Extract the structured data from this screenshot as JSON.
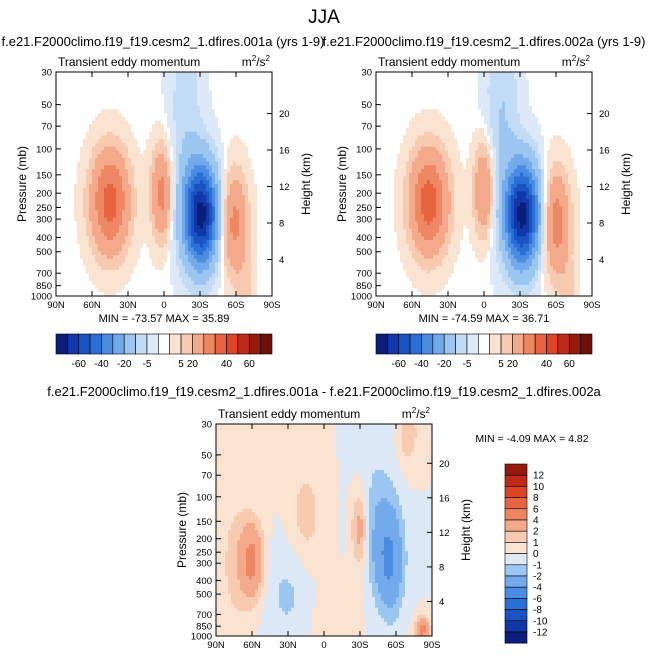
{
  "figure": {
    "title": "JJA"
  },
  "chart_data": [
    {
      "type": "heatmap",
      "case_label": "f.e21.F2000climo.f19_f19.cesm2_1.dfires.001a (yrs 1-9)",
      "title": "Transient eddy momentum",
      "units": "m²/s²",
      "units_base": "m",
      "units_sup": "2",
      "units_mid": "/s",
      "units_sup2": "2",
      "xlabel": "",
      "ylabel": "Pressure (mb)",
      "ylabel_right": "Height (km)",
      "x_ticks": [
        "90N",
        "60N",
        "30N",
        "0",
        "30S",
        "60S",
        "90S"
      ],
      "x_values": [
        90,
        60,
        30,
        0,
        -30,
        -60,
        -90
      ],
      "pressure_ticks": [
        "30",
        "50",
        "70",
        "100",
        "150",
        "200",
        "250",
        "300",
        "400",
        "500",
        "700",
        "850",
        "1000"
      ],
      "pressure_values": [
        30,
        50,
        70,
        100,
        150,
        200,
        250,
        300,
        400,
        500,
        700,
        850,
        1000
      ],
      "height_ticks": [
        "20",
        "16",
        "12",
        "8",
        "4"
      ],
      "height_values": [
        20,
        16,
        12,
        8,
        4
      ],
      "stats_text": "MIN = -73.57  MAX = 35.89",
      "min": -73.57,
      "max": 35.89,
      "features": [
        {
          "lat": 45,
          "p": 230,
          "value": 35,
          "wlat": 11,
          "wp": 0.55
        },
        {
          "lat": 2,
          "p": 200,
          "value": 24,
          "wlat": 6,
          "wp": 0.5
        },
        {
          "lat": -31,
          "p": 280,
          "value": -73,
          "wlat": 10,
          "wp": 0.55
        },
        {
          "lat": -58,
          "p": 320,
          "value": 24,
          "wlat": 8,
          "wp": 0.55
        },
        {
          "lat": -18,
          "p": 60,
          "value": -8,
          "wlat": 10,
          "wp": 1.4
        },
        {
          "lat": -68,
          "p": 880,
          "value": 6,
          "wlat": 5,
          "wp": 0.3
        }
      ]
    },
    {
      "type": "heatmap",
      "case_label": "f.e21.F2000climo.f19_f19.cesm2_1.dfires.002a (yrs 1-9)",
      "title": "Transient eddy momentum",
      "units": "m²/s²",
      "units_base": "m",
      "units_sup": "2",
      "units_mid": "/s",
      "units_sup2": "2",
      "xlabel": "",
      "ylabel": "Pressure (mb)",
      "ylabel_right": "Height (km)",
      "x_ticks": [
        "90N",
        "60N",
        "30N",
        "0",
        "30S",
        "60S",
        "90S"
      ],
      "x_values": [
        90,
        60,
        30,
        0,
        -30,
        -60,
        -90
      ],
      "pressure_ticks": [
        "30",
        "50",
        "70",
        "100",
        "150",
        "200",
        "250",
        "300",
        "400",
        "500",
        "700",
        "850",
        "1000"
      ],
      "pressure_values": [
        30,
        50,
        70,
        100,
        150,
        200,
        250,
        300,
        400,
        500,
        700,
        850,
        1000
      ],
      "height_ticks": [
        "20",
        "16",
        "12",
        "8",
        "4"
      ],
      "height_values": [
        20,
        16,
        12,
        8,
        4
      ],
      "stats_text": "MIN = -74.59  MAX = 36.71",
      "min": -74.59,
      "max": 36.71,
      "features": [
        {
          "lat": 46,
          "p": 230,
          "value": 36,
          "wlat": 11,
          "wp": 0.55
        },
        {
          "lat": 0,
          "p": 190,
          "value": 22,
          "wlat": 6,
          "wp": 0.5
        },
        {
          "lat": -32,
          "p": 280,
          "value": -74,
          "wlat": 10,
          "wp": 0.55
        },
        {
          "lat": -60,
          "p": 320,
          "value": 26,
          "wlat": 8,
          "wp": 0.55
        },
        {
          "lat": -15,
          "p": 55,
          "value": -10,
          "wlat": 10,
          "wp": 1.3
        },
        {
          "lat": -70,
          "p": 880,
          "value": 6,
          "wlat": 5,
          "wp": 0.3
        }
      ]
    },
    {
      "type": "heatmap",
      "case_label": "f.e21.F2000climo.f19_f19.cesm2_1.dfires.001a - f.e21.F2000climo.f19_f19.cesm2_1.dfires.002a",
      "title": "Transient eddy momentum",
      "units": "m²/s²",
      "units_base": "m",
      "units_sup": "2",
      "units_mid": "/s",
      "units_sup2": "2",
      "xlabel": "",
      "ylabel": "Pressure (mb)",
      "ylabel_right": "Height (km)",
      "x_ticks": [
        "90N",
        "60N",
        "30N",
        "0",
        "30S",
        "60S",
        "90S"
      ],
      "x_values": [
        90,
        60,
        30,
        0,
        -30,
        -60,
        -90
      ],
      "pressure_ticks": [
        "30",
        "50",
        "70",
        "100",
        "150",
        "200",
        "250",
        "300",
        "400",
        "500",
        "700",
        "850",
        "1000"
      ],
      "pressure_values": [
        30,
        50,
        70,
        100,
        150,
        200,
        250,
        300,
        400,
        500,
        700,
        850,
        1000
      ],
      "height_ticks": [
        "20",
        "16",
        "12",
        "8",
        "4"
      ],
      "height_values": [
        20,
        16,
        12,
        8,
        4
      ],
      "stats_text": "MIN =  -4.09  MAX =   4.82",
      "min": -4.09,
      "max": 4.82,
      "features": [
        {
          "lat": 60,
          "p": 290,
          "value": 4.5,
          "wlat": 7,
          "wp": 0.45
        },
        {
          "lat": 75,
          "p": 300,
          "value": 1.2,
          "wlat": 10,
          "wp": 0.9
        },
        {
          "lat": 15,
          "p": 140,
          "value": 1.5,
          "wlat": 10,
          "wp": 0.6
        },
        {
          "lat": -30,
          "p": 170,
          "value": 3.2,
          "wlat": 5,
          "wp": 0.45
        },
        {
          "lat": -55,
          "p": 300,
          "value": -3.6,
          "wlat": 8,
          "wp": 0.6
        },
        {
          "lat": -45,
          "p": 160,
          "value": -1.8,
          "wlat": 12,
          "wp": 0.8
        },
        {
          "lat": -82,
          "p": 900,
          "value": 4.8,
          "wlat": 4,
          "wp": 0.15
        },
        {
          "lat": -70,
          "p": 35,
          "value": 1.8,
          "wlat": 6,
          "wp": 0.4
        },
        {
          "lat": 30,
          "p": 500,
          "value": -1.2,
          "wlat": 15,
          "wp": 0.6
        },
        {
          "lat": -10,
          "p": 700,
          "value": 0.8,
          "wlat": 15,
          "wp": 0.4
        }
      ]
    }
  ],
  "colorbar_top": {
    "labels": [
      "-60",
      "-40",
      "-20",
      "-5",
      "5",
      "20",
      "40",
      "60"
    ],
    "levels": [
      -70,
      -60,
      -50,
      -40,
      -30,
      -20,
      -10,
      -5,
      -1,
      1,
      5,
      10,
      20,
      30,
      40,
      50,
      60,
      70
    ],
    "colors": [
      "#0c1c7b",
      "#1237a8",
      "#1a53c4",
      "#2a6fd6",
      "#4a8ce2",
      "#72aaec",
      "#9cc6f2",
      "#c2dcf6",
      "#dde9f7",
      "#ffffff",
      "#fbe3d2",
      "#f8cab0",
      "#f4aa8a",
      "#ef8762",
      "#e86440",
      "#de4324",
      "#c02a14",
      "#961a0c",
      "#6e1006"
    ]
  },
  "colorbar_diff": {
    "labels": [
      "12",
      "10",
      "8",
      "6",
      "4",
      "2",
      "1",
      "0",
      "-1",
      "-2",
      "-4",
      "-6",
      "-8",
      "-10",
      "-12"
    ],
    "levels": [
      -12,
      -10,
      -8,
      -6,
      -4,
      -2,
      -1,
      0,
      1,
      2,
      4,
      6,
      8,
      10,
      12
    ],
    "colors": [
      "#0c1c7b",
      "#1237a8",
      "#1a53c4",
      "#2a6fd6",
      "#4a8ce2",
      "#72aaec",
      "#9cc6f2",
      "#dde9f7",
      "#fbe3d2",
      "#f8cab0",
      "#f4aa8a",
      "#ef8762",
      "#e86440",
      "#de4324",
      "#c02a14",
      "#961a0c"
    ]
  }
}
